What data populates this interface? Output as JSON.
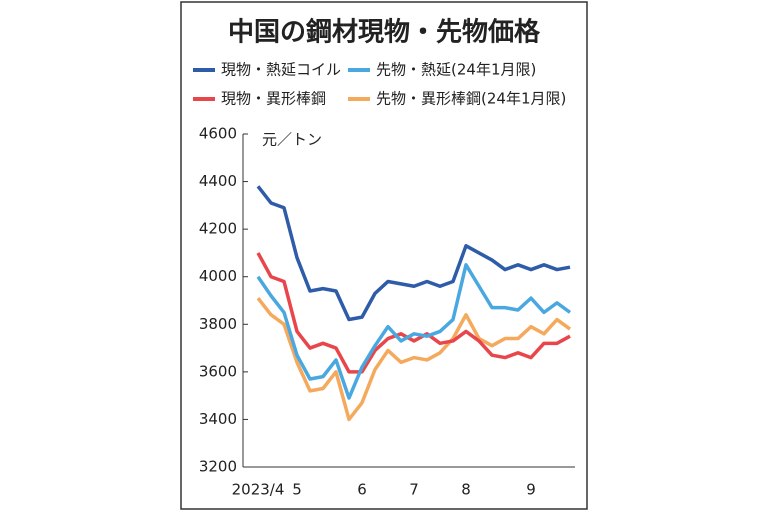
{
  "chart_data": {
    "type": "line",
    "title": "中国の鋼材現物・先物価格",
    "y_label": "元／トン",
    "categories": [
      "2023/4",
      null,
      null,
      "5",
      null,
      null,
      null,
      null,
      "6",
      null,
      null,
      null,
      "7",
      null,
      null,
      null,
      "8",
      null,
      null,
      null,
      null,
      "9",
      null,
      null,
      null
    ],
    "series": [
      {
        "name": "現物・熱延コイル",
        "color": "#2e5ca8",
        "values": [
          4380,
          4310,
          4290,
          4080,
          3940,
          3950,
          3940,
          3820,
          3830,
          3930,
          3980,
          3970,
          3960,
          3980,
          3960,
          3980,
          4130,
          4100,
          4070,
          4030,
          4050,
          4030,
          4050,
          4030,
          4040
        ]
      },
      {
        "name": "先物・熱延(24年1月限)",
        "color": "#4aa8e0",
        "values": [
          4000,
          3920,
          3850,
          3670,
          3570,
          3580,
          3650,
          3490,
          3620,
          3710,
          3790,
          3730,
          3760,
          3750,
          3770,
          3820,
          4050,
          3960,
          3870,
          3870,
          3860,
          3910,
          3850,
          3890,
          3850
        ]
      },
      {
        "name": "現物・異形棒鋼",
        "color": "#e8464a",
        "values": [
          4100,
          4000,
          3980,
          3770,
          3700,
          3720,
          3700,
          3600,
          3600,
          3690,
          3740,
          3760,
          3730,
          3760,
          3720,
          3730,
          3770,
          3730,
          3670,
          3660,
          3680,
          3660,
          3720,
          3720,
          3750
        ]
      },
      {
        "name": "先物・異形棒鋼(24年1月限)",
        "color": "#f5a95c",
        "values": [
          3910,
          3840,
          3800,
          3640,
          3520,
          3530,
          3600,
          3400,
          3470,
          3610,
          3690,
          3640,
          3660,
          3650,
          3680,
          3740,
          3840,
          3740,
          3710,
          3740,
          3740,
          3790,
          3760,
          3820,
          3780
        ]
      }
    ],
    "ylim": [
      3200,
      4600
    ],
    "yticks": [
      3200,
      3400,
      3600,
      3800,
      4000,
      4200,
      4400,
      4600
    ],
    "grid": false
  }
}
